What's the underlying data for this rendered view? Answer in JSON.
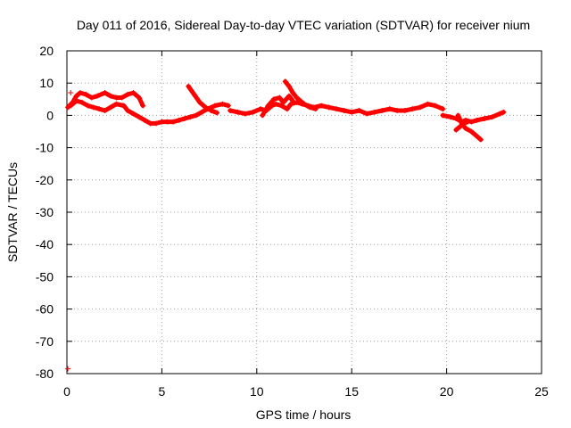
{
  "chart_data": {
    "type": "scatter",
    "title": "Day 011 of 2016, Sidereal Day-to-day VTEC variation (SDTVAR) for receiver nium",
    "xlabel": "GPS time / hours",
    "ylabel": "SDTVAR / TECUs",
    "xlim": [
      0,
      25
    ],
    "ylim": [
      -80,
      20
    ],
    "xticks": [
      "0",
      "5",
      "10",
      "15",
      "20",
      "25"
    ],
    "yticks": [
      "20",
      "10",
      "0",
      "-10",
      "-20",
      "-30",
      "-40",
      "-50",
      "-60",
      "-70",
      "-80"
    ],
    "grid": true,
    "series": [
      {
        "name": "SDTVAR",
        "color": "#ff0000",
        "marker": "plus",
        "segments": [
          [
            [
              0.05,
              2.5
            ],
            [
              0.3,
              4
            ],
            [
              0.5,
              6
            ],
            [
              0.7,
              7
            ],
            [
              1.0,
              6.5
            ],
            [
              1.3,
              5.5
            ],
            [
              1.6,
              6
            ],
            [
              2.0,
              7
            ],
            [
              2.3,
              6
            ],
            [
              2.6,
              5.5
            ],
            [
              2.9,
              5.5
            ],
            [
              3.2,
              6.5
            ],
            [
              3.5,
              7
            ],
            [
              3.8,
              5.5
            ],
            [
              4.0,
              3
            ]
          ],
          [
            [
              0.2,
              3
            ],
            [
              0.5,
              4.5
            ],
            [
              0.8,
              4
            ],
            [
              1.1,
              3
            ],
            [
              1.4,
              2.5
            ],
            [
              1.7,
              2
            ],
            [
              2.0,
              1.5
            ],
            [
              2.3,
              2.5
            ],
            [
              2.6,
              3.5
            ],
            [
              3.0,
              3
            ],
            [
              3.2,
              1.5
            ],
            [
              3.5,
              0.5
            ],
            [
              3.8,
              -0.5
            ],
            [
              4.1,
              -1.5
            ],
            [
              4.4,
              -2.5
            ],
            [
              4.7,
              -2.5
            ],
            [
              5.0,
              -2
            ],
            [
              5.3,
              -2
            ],
            [
              5.6,
              -2
            ],
            [
              5.9,
              -1.5
            ],
            [
              6.2,
              -1
            ],
            [
              6.5,
              -0.5
            ],
            [
              6.8,
              0
            ],
            [
              7.1,
              1
            ],
            [
              7.4,
              2
            ],
            [
              7.8,
              3
            ],
            [
              8.2,
              3.5
            ],
            [
              8.5,
              3
            ]
          ],
          [
            [
              6.4,
              9
            ],
            [
              6.7,
              6.5
            ],
            [
              7.0,
              4
            ],
            [
              7.3,
              2.5
            ],
            [
              7.6,
              1.5
            ],
            [
              7.9,
              0.8
            ]
          ],
          [
            [
              8.6,
              1.5
            ],
            [
              9.0,
              1
            ],
            [
              9.4,
              0.5
            ],
            [
              9.8,
              1
            ],
            [
              10.2,
              2
            ],
            [
              10.5,
              1.5
            ],
            [
              10.8,
              3
            ],
            [
              11.0,
              3.5
            ],
            [
              11.3,
              3
            ],
            [
              11.6,
              2
            ],
            [
              11.8,
              3.5
            ],
            [
              12.1,
              4
            ],
            [
              12.4,
              3.5
            ],
            [
              12.7,
              3
            ],
            [
              13.0,
              2.5
            ],
            [
              13.4,
              3
            ],
            [
              13.8,
              2.5
            ],
            [
              14.2,
              2
            ],
            [
              14.6,
              1.5
            ],
            [
              15.0,
              1
            ],
            [
              15.4,
              1.5
            ],
            [
              15.8,
              0.5
            ],
            [
              16.2,
              1
            ],
            [
              16.6,
              1.5
            ],
            [
              17.0,
              2
            ],
            [
              17.4,
              1.5
            ],
            [
              17.8,
              1.5
            ],
            [
              18.2,
              2
            ],
            [
              18.6,
              2.5
            ],
            [
              19.0,
              3.5
            ],
            [
              19.4,
              3
            ],
            [
              19.8,
              2
            ]
          ],
          [
            [
              10.3,
              0
            ],
            [
              10.6,
              3
            ],
            [
              10.9,
              5
            ],
            [
              11.2,
              5.5
            ],
            [
              11.4,
              4
            ],
            [
              11.7,
              6
            ],
            [
              11.9,
              4.5
            ]
          ],
          [
            [
              11.5,
              10.5
            ],
            [
              11.7,
              9
            ],
            [
              11.9,
              7
            ],
            [
              12.1,
              5.5
            ],
            [
              12.3,
              4.5
            ],
            [
              12.5,
              3.5
            ],
            [
              12.8,
              2.5
            ],
            [
              13.1,
              2
            ]
          ],
          [
            [
              19.8,
              0
            ],
            [
              20.2,
              -0.5
            ],
            [
              20.5,
              -1
            ],
            [
              20.8,
              -2
            ],
            [
              21.0,
              -1.5
            ],
            [
              21.3,
              -2
            ],
            [
              21.6,
              -1.5
            ],
            [
              22.0,
              -1
            ],
            [
              22.4,
              -0.5
            ],
            [
              22.8,
              0.5
            ],
            [
              23.0,
              1
            ]
          ],
          [
            [
              20.6,
              0
            ],
            [
              20.8,
              -2.5
            ],
            [
              21.0,
              -4
            ],
            [
              21.3,
              -5
            ],
            [
              21.6,
              -6.5
            ],
            [
              21.8,
              -7.5
            ]
          ],
          [
            [
              20.5,
              -4.5
            ],
            [
              20.7,
              -3.5
            ],
            [
              20.9,
              -2.5
            ],
            [
              21.1,
              -2
            ]
          ]
        ],
        "points": [
          [
            0.2,
            7
          ],
          [
            0.05,
            -78.5
          ]
        ]
      }
    ]
  }
}
